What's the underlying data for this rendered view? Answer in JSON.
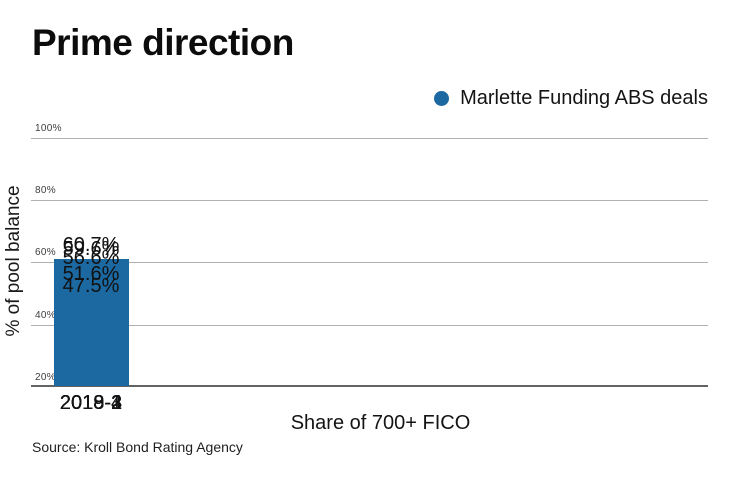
{
  "title": "Prime direction",
  "legend": {
    "label": "Marlette Funding ABS deals",
    "marker_color": "#1c69a2"
  },
  "source": "Source: Kroll Bond Rating Agency",
  "chart_data": {
    "type": "bar",
    "title": "Prime direction",
    "series_name": "Marlette Funding ABS deals",
    "categories": [
      "2019-2",
      "2019-1",
      "2018-4",
      "2018-3",
      "2018-2"
    ],
    "values": [
      59.6,
      60.7,
      56.6,
      51.6,
      47.5
    ],
    "value_labels": [
      "59.6%",
      "60.7%",
      "56.6%",
      "51.6%",
      "47.5%"
    ],
    "xlabel": "Share of 700+ FICO",
    "ylabel": "% of pool balance",
    "ylim": [
      20,
      100
    ],
    "yticks": [
      100,
      80,
      60,
      40,
      20
    ],
    "ytick_labels": [
      "100%",
      "80%",
      "60%",
      "40%",
      "20%"
    ],
    "grid": true,
    "legend_position": "top-right",
    "bar_color": "#1c69a2",
    "gridline_color": "#b0b0b0"
  }
}
